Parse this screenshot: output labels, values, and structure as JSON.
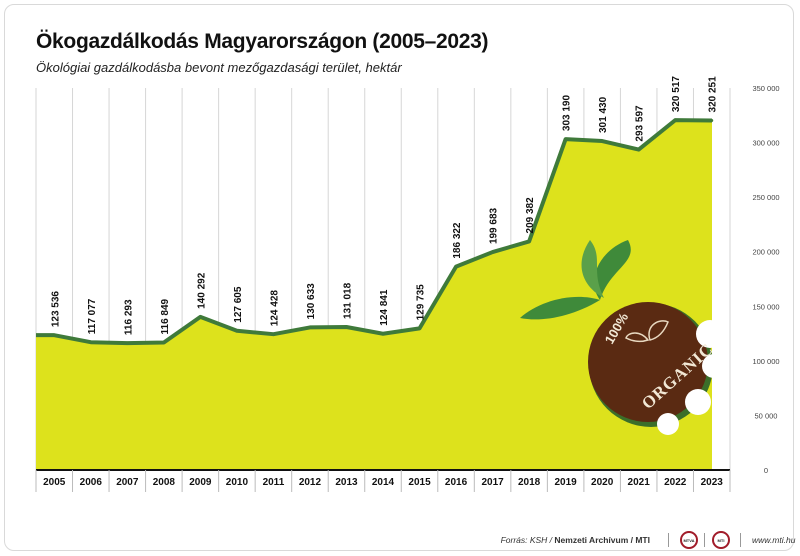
{
  "title": "Ökogazdálkodás Magyarországon (2005–2023)",
  "subtitle": "Ökológiai gazdálkodásba bevont mezőgazdasági terület, hektár",
  "chart_data": {
    "type": "area",
    "title": "Ökogazdálkodás Magyarországon (2005–2023)",
    "subtitle": "Ökológiai gazdálkodásba bevont mezőgazdasági terület, hektár",
    "x": [
      "2005",
      "2006",
      "2007",
      "2008",
      "2009",
      "2010",
      "2011",
      "2012",
      "2013",
      "2014",
      "2015",
      "2016",
      "2017",
      "2018",
      "2019",
      "2020",
      "2021",
      "2022",
      "2023"
    ],
    "values": [
      123536,
      117077,
      116293,
      116849,
      140292,
      127605,
      124428,
      130633,
      131018,
      124841,
      129735,
      186322,
      199683,
      209382,
      303190,
      301430,
      293597,
      320517,
      320251
    ],
    "value_labels": [
      "123 536",
      "117 077",
      "116 293",
      "116 849",
      "140 292",
      "127 605",
      "124 428",
      "130 633",
      "131 018",
      "124 841",
      "129 735",
      "186 322",
      "199 683",
      "209 382",
      "303 190",
      "301 430",
      "293 597",
      "320 517",
      "320 251"
    ],
    "ylim": [
      0,
      350000
    ],
    "yticks": [
      0,
      50000,
      100000,
      150000,
      200000,
      250000,
      300000,
      350000
    ],
    "ytick_labels": [
      "0",
      "50 000",
      "100 000",
      "150 000",
      "200 000",
      "250 000",
      "300 000",
      "350 000"
    ],
    "y_axis_side": "right",
    "grid": "vertical",
    "colors": {
      "area": "#dde21c",
      "line": "#3f7a3a",
      "grid": "#d6d6d6"
    }
  },
  "badge": {
    "percent": "100%",
    "text": "ORGANIC",
    "colors": {
      "disc": "#5a2a12",
      "leaf": "#3f8a3a",
      "rim": "#3b6e2a"
    }
  },
  "footer": {
    "source_prefix": "Forrás: KSH /",
    "source_bold": "Nemzeti Archívum / MTI",
    "logo1_text": "MTVA",
    "logo2_text": "MTI",
    "site": "www.mti.hu"
  }
}
